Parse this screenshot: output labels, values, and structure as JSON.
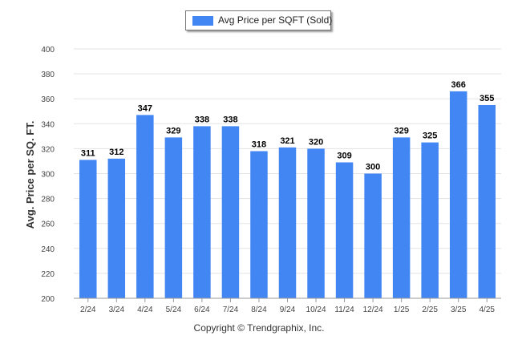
{
  "legend": {
    "label": "Avg Price per SQFT (Sold)",
    "color": "#4286f4"
  },
  "copyright": "Copyright © Trendgraphix, Inc.",
  "chart_data": {
    "type": "bar",
    "ylabel": "Avg. Price per SQ. FT.",
    "xlabel": "",
    "ylim": [
      200,
      400
    ],
    "yticks": [
      200,
      220,
      240,
      260,
      280,
      300,
      320,
      340,
      360,
      380,
      400
    ],
    "grid": true,
    "legend_position": "top-center",
    "categories": [
      "2/24",
      "3/24",
      "4/24",
      "5/24",
      "6/24",
      "7/24",
      "8/24",
      "9/24",
      "10/24",
      "11/24",
      "12/24",
      "1/25",
      "2/25",
      "3/25",
      "4/25"
    ],
    "series": [
      {
        "name": "Avg Price per SQFT (Sold)",
        "color": "#4286f4",
        "values": [
          311,
          312,
          347,
          329,
          338,
          338,
          318,
          321,
          320,
          309,
          300,
          329,
          325,
          366,
          355
        ]
      }
    ]
  }
}
